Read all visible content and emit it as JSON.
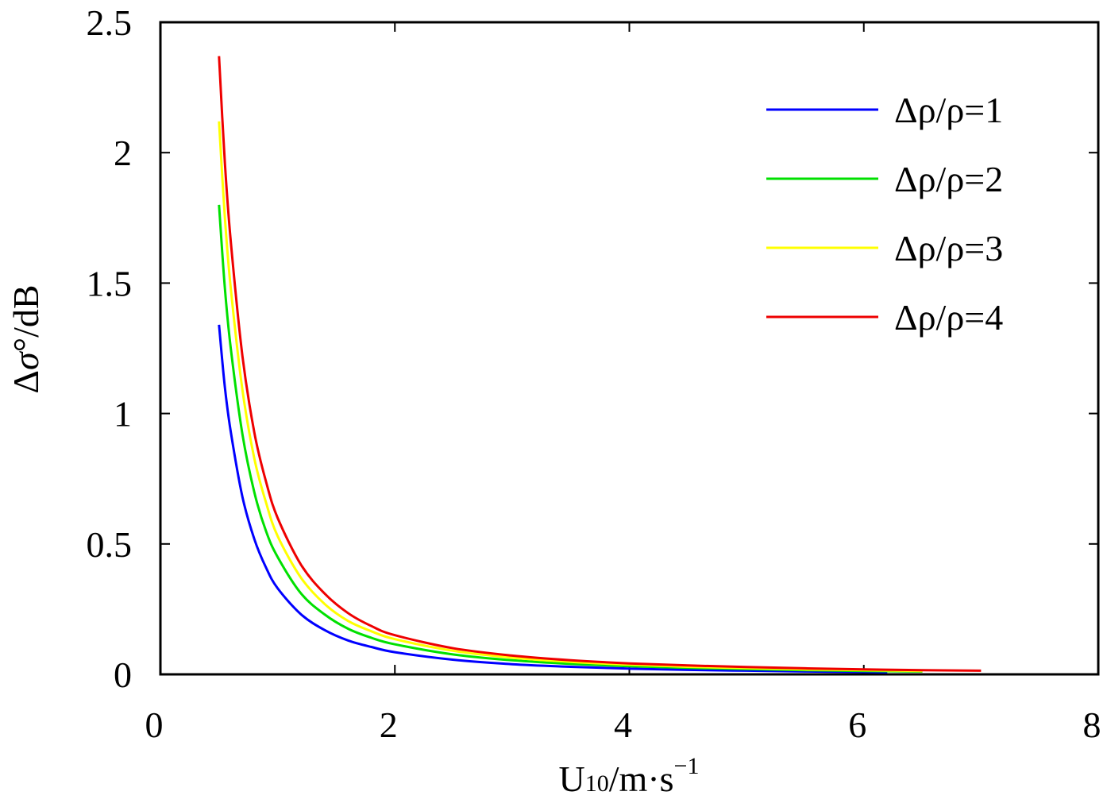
{
  "chart_data": {
    "type": "line",
    "title": "",
    "xlabel": "U10/m·s−1",
    "xlabel_parts": {
      "base": "U",
      "sub": "10",
      "mid": "/m·s",
      "sup": "−1"
    },
    "ylabel": "Δσ°/dB",
    "ylabel_parts": {
      "delta": "Δ",
      "sigma": "σ",
      "deg": "°",
      "unit": "/dB"
    },
    "xlim": [
      0,
      8
    ],
    "ylim": [
      0,
      2.5
    ],
    "x_ticks": [
      0,
      2,
      4,
      6,
      8
    ],
    "y_ticks": [
      0,
      0.5,
      1,
      1.5,
      2,
      2.5
    ],
    "x_tick_labels": [
      "0",
      "2",
      "4",
      "6",
      "8"
    ],
    "y_tick_labels": [
      "0",
      "0.5",
      "1",
      "1.5",
      "2",
      "2.5"
    ],
    "grid": false,
    "legend_position": "top-right",
    "series": [
      {
        "name": "Δρ/ρ=1",
        "color": "#0000ff",
        "x": [
          0.5,
          0.55,
          0.6,
          0.7,
          0.8,
          0.9,
          1.0,
          1.2,
          1.4,
          1.6,
          1.8,
          2.0,
          2.5,
          3.0,
          3.5,
          4.0,
          4.5,
          5.0,
          5.5,
          6.0,
          6.2
        ],
        "y": [
          1.34,
          1.1,
          0.93,
          0.68,
          0.52,
          0.41,
          0.33,
          0.23,
          0.17,
          0.13,
          0.105,
          0.085,
          0.056,
          0.039,
          0.029,
          0.022,
          0.017,
          0.014,
          0.011,
          0.009,
          0.008
        ]
      },
      {
        "name": "Δρ/ρ=2",
        "color": "#00e000",
        "x": [
          0.5,
          0.55,
          0.6,
          0.7,
          0.8,
          0.9,
          1.0,
          1.2,
          1.4,
          1.6,
          1.8,
          2.0,
          2.5,
          3.0,
          3.5,
          4.0,
          4.5,
          5.0,
          5.5,
          6.0,
          6.5
        ],
        "y": [
          1.8,
          1.48,
          1.25,
          0.92,
          0.7,
          0.55,
          0.45,
          0.31,
          0.23,
          0.175,
          0.14,
          0.115,
          0.076,
          0.054,
          0.04,
          0.031,
          0.025,
          0.02,
          0.016,
          0.013,
          0.011
        ]
      },
      {
        "name": "Δρ/ρ=3",
        "color": "#ffff00",
        "x": [
          0.5,
          0.55,
          0.6,
          0.7,
          0.8,
          0.9,
          1.0,
          1.2,
          1.4,
          1.6,
          1.8,
          2.0,
          2.5,
          3.0,
          3.5,
          4.0,
          4.5,
          5.0,
          5.5,
          6.0,
          6.5
        ],
        "y": [
          2.12,
          1.75,
          1.48,
          1.09,
          0.83,
          0.66,
          0.53,
          0.37,
          0.27,
          0.205,
          0.165,
          0.135,
          0.09,
          0.064,
          0.048,
          0.037,
          0.029,
          0.024,
          0.019,
          0.016,
          0.013
        ]
      },
      {
        "name": "Δρ/ρ=4",
        "color": "#ee0000",
        "x": [
          0.5,
          0.55,
          0.6,
          0.7,
          0.8,
          0.9,
          1.0,
          1.2,
          1.4,
          1.6,
          1.8,
          2.0,
          2.5,
          3.0,
          3.5,
          4.0,
          4.5,
          5.0,
          5.5,
          6.0,
          6.5,
          7.0
        ],
        "y": [
          2.37,
          1.96,
          1.66,
          1.22,
          0.93,
          0.74,
          0.6,
          0.42,
          0.31,
          0.235,
          0.185,
          0.15,
          0.1,
          0.072,
          0.054,
          0.042,
          0.034,
          0.028,
          0.023,
          0.019,
          0.016,
          0.014
        ]
      }
    ]
  }
}
